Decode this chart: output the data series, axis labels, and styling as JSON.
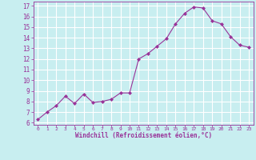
{
  "x": [
    0,
    1,
    2,
    3,
    4,
    5,
    6,
    7,
    8,
    9,
    10,
    11,
    12,
    13,
    14,
    15,
    16,
    17,
    18,
    19,
    20,
    21,
    22,
    23
  ],
  "y": [
    6.3,
    7.0,
    7.6,
    8.5,
    7.8,
    8.7,
    7.9,
    8.0,
    8.2,
    8.8,
    8.8,
    12.0,
    12.5,
    13.2,
    13.9,
    15.3,
    16.3,
    16.9,
    16.8,
    15.6,
    15.3,
    14.1,
    13.3,
    13.1
  ],
  "line_color": "#993399",
  "marker": "D",
  "marker_size": 2.0,
  "bg_color": "#c8eef0",
  "grid_color": "#ffffff",
  "xlabel": "Windchill (Refroidissement éolien,°C)",
  "xlabel_color": "#993399",
  "tick_color": "#993399",
  "ylim": [
    5.8,
    17.4
  ],
  "xlim": [
    -0.5,
    23.5
  ],
  "yticks": [
    6,
    7,
    8,
    9,
    10,
    11,
    12,
    13,
    14,
    15,
    16,
    17
  ],
  "xticks": [
    0,
    1,
    2,
    3,
    4,
    5,
    6,
    7,
    8,
    9,
    10,
    11,
    12,
    13,
    14,
    15,
    16,
    17,
    18,
    19,
    20,
    21,
    22,
    23
  ],
  "xtick_labels": [
    "0",
    "1",
    "2",
    "3",
    "4",
    "5",
    "6",
    "7",
    "8",
    "9",
    "10",
    "11",
    "12",
    "13",
    "14",
    "15",
    "16",
    "17",
    "18",
    "19",
    "20",
    "21",
    "22",
    "23"
  ]
}
